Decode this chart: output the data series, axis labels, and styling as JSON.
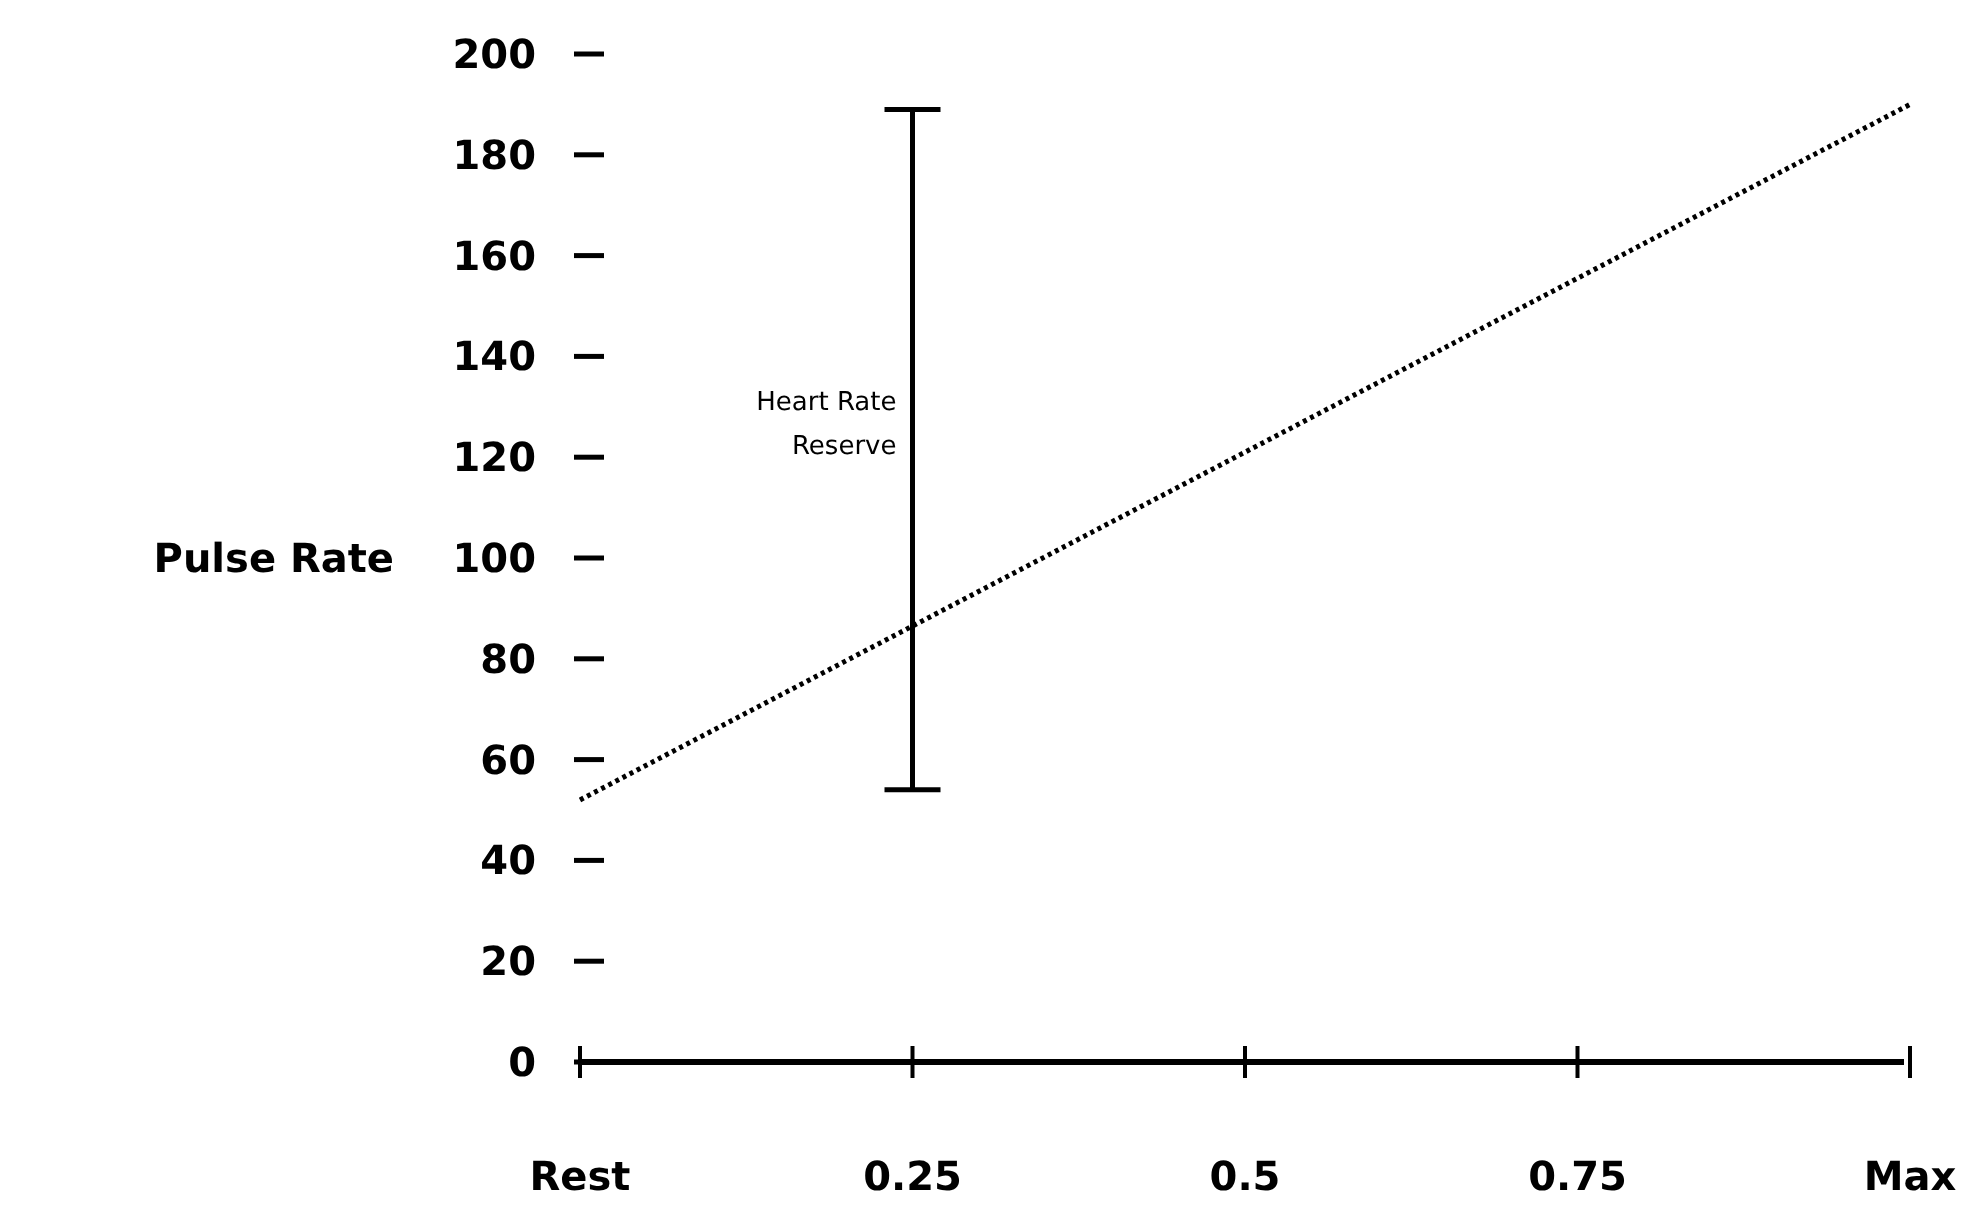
{
  "chart_data": {
    "type": "line",
    "ylabel": "Pulse Rate",
    "xlim": [
      0,
      1
    ],
    "xticks": [
      {
        "value": 0,
        "label": "Rest"
      },
      0.25,
      0.5,
      0.75,
      {
        "value": 1,
        "label": "Max"
      }
    ],
    "ylim": [
      0,
      200
    ],
    "yticks": [
      0,
      20,
      40,
      60,
      80,
      100,
      120,
      140,
      160,
      180,
      200
    ],
    "line_style": "dotted",
    "series": [
      {
        "color": "#000000",
        "x": [
          0,
          1
        ],
        "values": [
          52,
          190
        ]
      },
      {
        "color": "#000000",
        "x": [
          0.25,
          0.25
        ],
        "values": [
          54,
          189
        ],
        "line_style": "solid"
      }
    ],
    "annotations": [
      {
        "text": "Heart Rate Reserve",
        "x": 0.25,
        "y": 125
      }
    ]
  }
}
